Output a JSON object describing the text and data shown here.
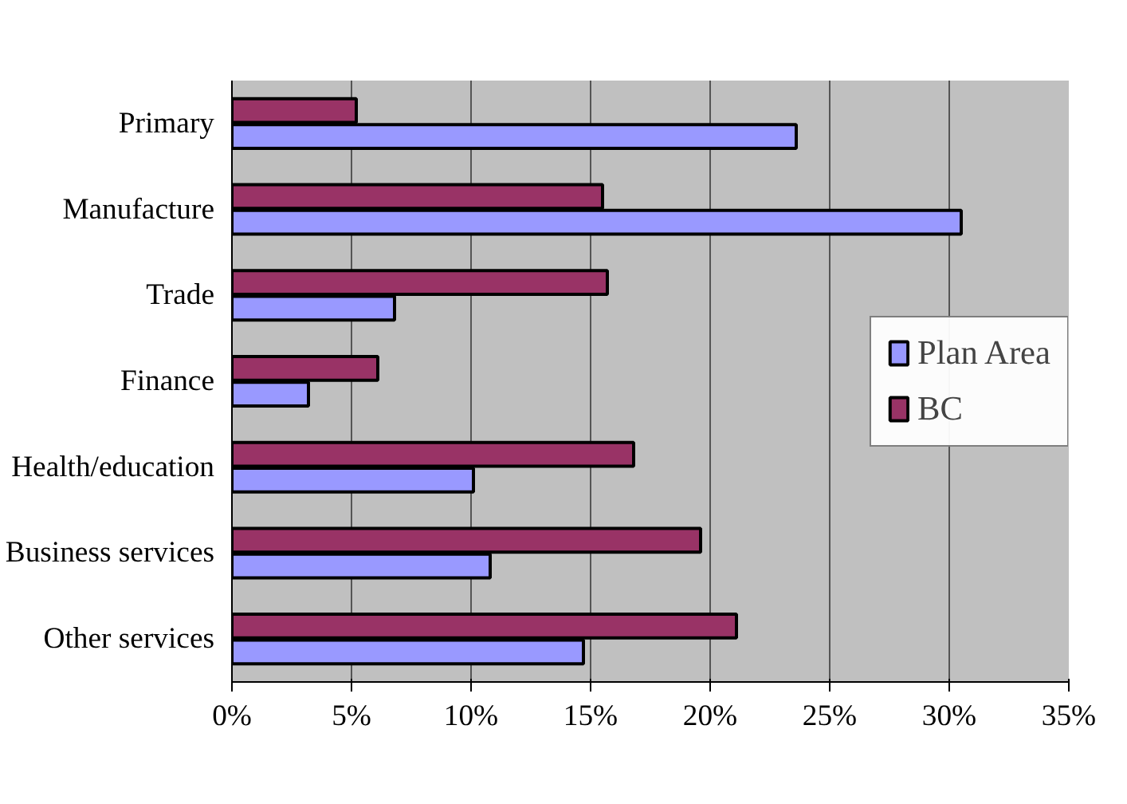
{
  "chart_data": {
    "type": "bar",
    "orientation": "horizontal",
    "categories": [
      "Primary",
      "Manufacture",
      "Trade",
      "Finance",
      "Health/education",
      "Business services",
      "Other services"
    ],
    "series": [
      {
        "name": "Plan Area",
        "color": "#9999ff",
        "values": [
          23.6,
          30.5,
          6.8,
          3.2,
          10.1,
          10.8,
          14.7
        ]
      },
      {
        "name": "BC",
        "color": "#993366",
        "values": [
          5.2,
          15.5,
          15.7,
          6.1,
          16.8,
          19.6,
          21.1
        ]
      }
    ],
    "xlim": [
      0,
      35
    ],
    "xticks": [
      {
        "value": 0,
        "label": "0%"
      },
      {
        "value": 5,
        "label": "5%"
      },
      {
        "value": 10,
        "label": "10%"
      },
      {
        "value": 15,
        "label": "15%"
      },
      {
        "value": 20,
        "label": "20%"
      },
      {
        "value": 25,
        "label": "25%"
      },
      {
        "value": 30,
        "label": "30%"
      },
      {
        "value": 35,
        "label": "35%"
      }
    ],
    "grid": "x",
    "legend": "right"
  }
}
